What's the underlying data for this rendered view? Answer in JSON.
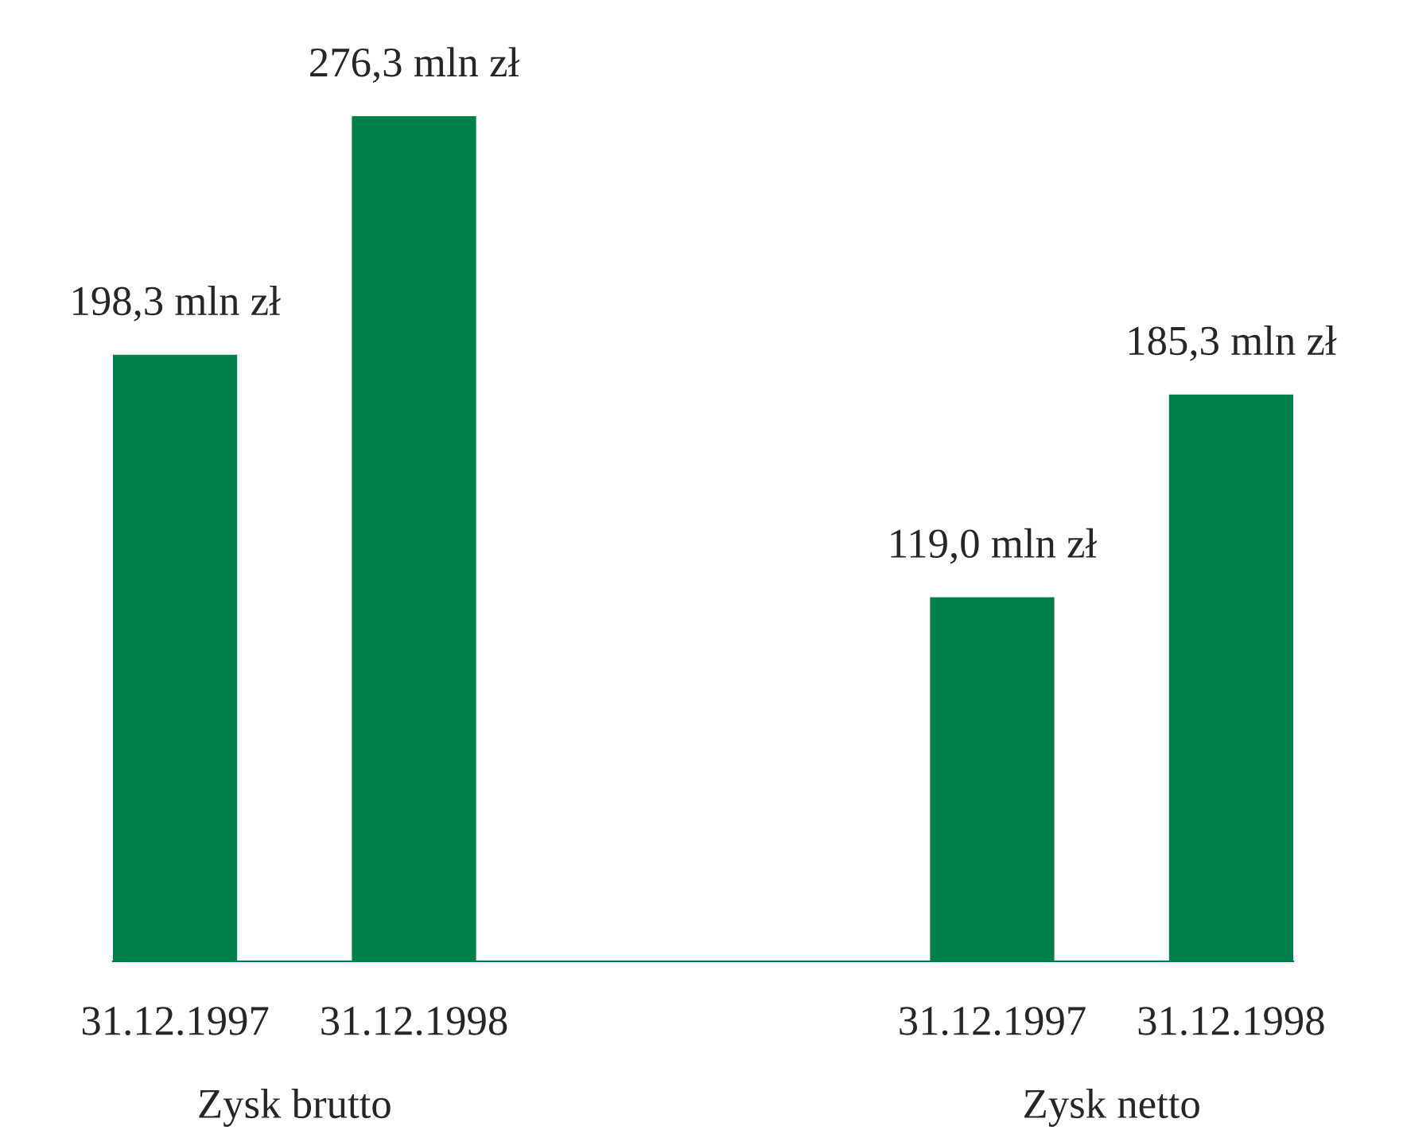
{
  "chart_data": {
    "type": "bar",
    "categories": [
      "31.12.1997",
      "31.12.1998",
      "31.12.1997",
      "31.12.1998"
    ],
    "values": [
      198.3,
      276.3,
      119.0,
      185.3
    ],
    "value_labels": [
      "198,3 mln zł",
      "276,3 mln zł",
      "119,0 mln zł",
      "185,3 mln zł"
    ],
    "color": "#00804a",
    "annotations": [
      "Zysk brutto",
      "Zysk netto"
    ],
    "grid": false,
    "legend": false
  }
}
